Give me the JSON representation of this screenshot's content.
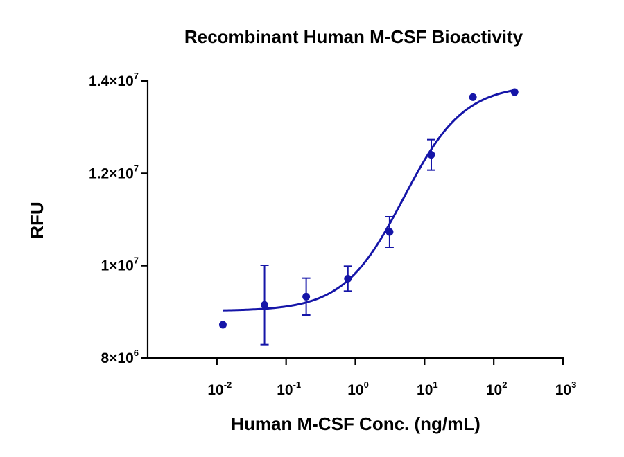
{
  "chart_data": {
    "type": "scatter",
    "title": "Recombinant Human M-CSF Bioactivity",
    "xlabel": "Human M-CSF Conc. (ng/mL)",
    "ylabel": "RFU",
    "x_scale": "log",
    "xlim": [
      0.001,
      1000
    ],
    "ylim": [
      8000000,
      14000000
    ],
    "x_ticks": [
      {
        "value": 0.01,
        "mantissa": "10",
        "exp": "-2"
      },
      {
        "value": 0.1,
        "mantissa": "10",
        "exp": "-1"
      },
      {
        "value": 1,
        "mantissa": "10",
        "exp": "0"
      },
      {
        "value": 10,
        "mantissa": "10",
        "exp": "1"
      },
      {
        "value": 100,
        "mantissa": "10",
        "exp": "2"
      },
      {
        "value": 1000,
        "mantissa": "10",
        "exp": "3"
      }
    ],
    "y_ticks": [
      {
        "value": 8000000,
        "mantissa": "8×10",
        "exp": "6"
      },
      {
        "value": 10000000,
        "mantissa": "1×10",
        "exp": "7"
      },
      {
        "value": 12000000,
        "mantissa": "1.2×10",
        "exp": "7"
      },
      {
        "value": 14000000,
        "mantissa": "1.4×10",
        "exp": "7"
      }
    ],
    "points": [
      {
        "x": 0.0122,
        "y": 8720000,
        "err": 0
      },
      {
        "x": 0.0488,
        "y": 9150000,
        "err": 860000
      },
      {
        "x": 0.195,
        "y": 9330000,
        "err": 400000
      },
      {
        "x": 0.781,
        "y": 9720000,
        "err": 270000
      },
      {
        "x": 3.125,
        "y": 10730000,
        "err": 330000
      },
      {
        "x": 12.5,
        "y": 12400000,
        "err": 330000
      },
      {
        "x": 50,
        "y": 13650000,
        "err": 0
      },
      {
        "x": 200,
        "y": 13760000,
        "err": 0
      }
    ],
    "fit": {
      "model": "4PL",
      "bottom": 9020000,
      "top": 13920000,
      "ec50": 5.0,
      "hill": 1.0
    },
    "grid": false,
    "legend": false,
    "color": "#1515a8"
  }
}
